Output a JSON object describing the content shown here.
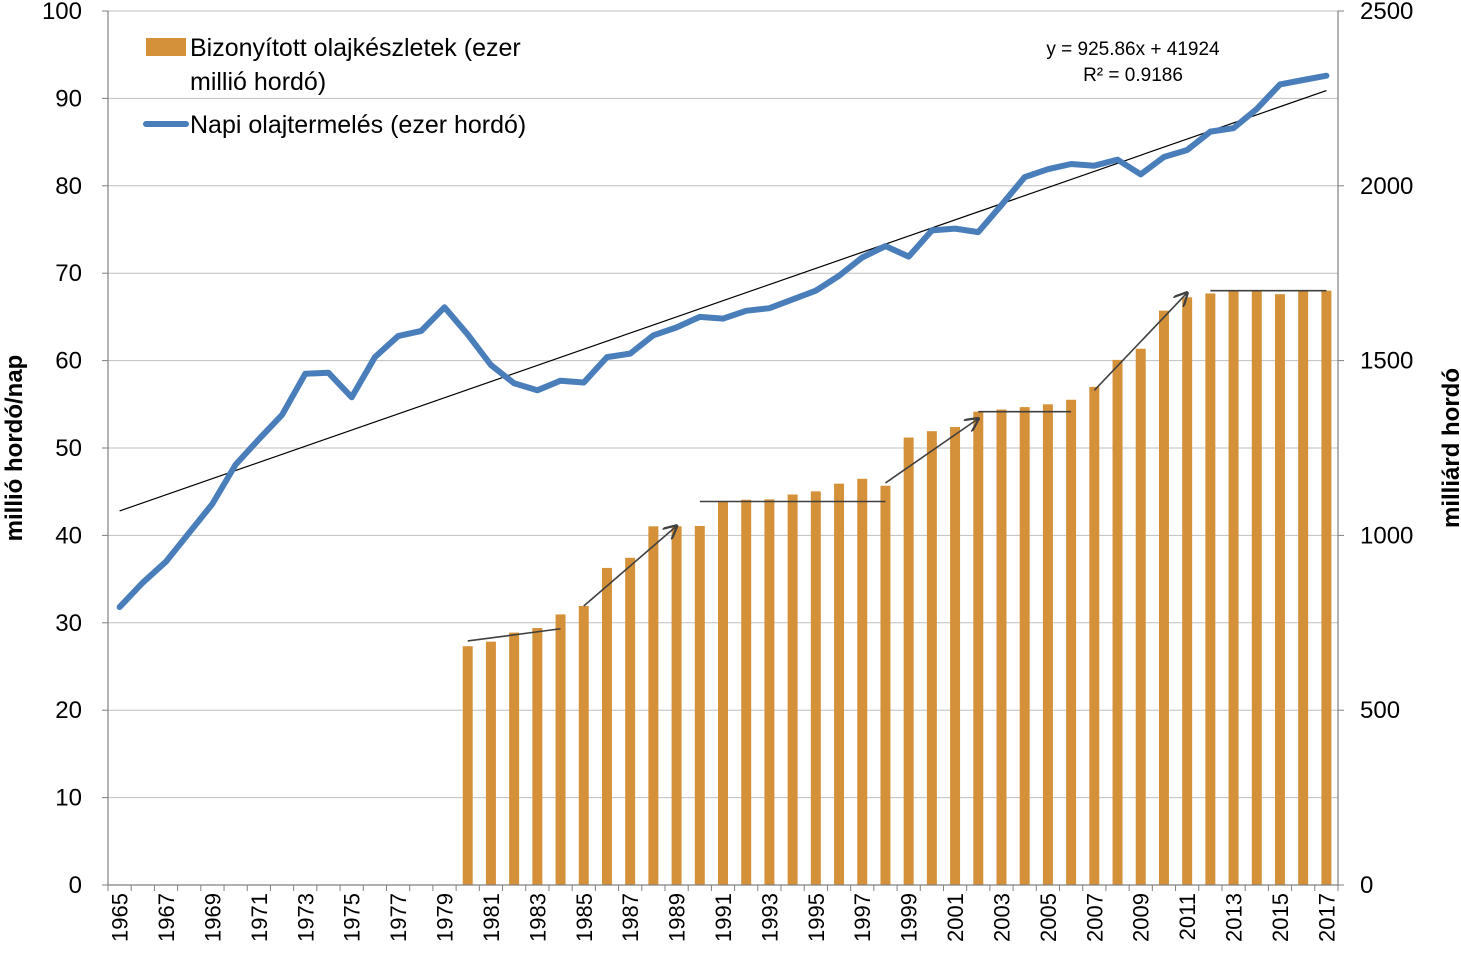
{
  "chart_data": {
    "type": "bar+line",
    "x": [
      1965,
      1966,
      1967,
      1968,
      1969,
      1970,
      1971,
      1972,
      1973,
      1974,
      1975,
      1976,
      1977,
      1978,
      1979,
      1980,
      1981,
      1982,
      1983,
      1984,
      1985,
      1986,
      1987,
      1988,
      1989,
      1990,
      1991,
      1992,
      1993,
      1994,
      1995,
      1996,
      1997,
      1998,
      1999,
      2000,
      2001,
      2002,
      2003,
      2004,
      2005,
      2006,
      2007,
      2008,
      2009,
      2010,
      2011,
      2012,
      2013,
      2014,
      2015,
      2016,
      2017
    ],
    "x_tick_labels": [
      "1965",
      "1967",
      "1969",
      "1971",
      "1973",
      "1975",
      "1977",
      "1979",
      "1981",
      "1983",
      "1985",
      "1987",
      "1989",
      "1991",
      "1993",
      "1995",
      "1997",
      "1999",
      "2001",
      "2003",
      "2005",
      "2007",
      "2009",
      "2011",
      "2013",
      "2015",
      "2017"
    ],
    "series": [
      {
        "name": "Bizonyított olajkészletek (ezer millió hordó)",
        "type": "bar",
        "axis": "right",
        "color": "#D4913A",
        "values": [
          null,
          null,
          null,
          null,
          null,
          null,
          null,
          null,
          null,
          null,
          null,
          null,
          null,
          null,
          null,
          683,
          696,
          722,
          735,
          774,
          798,
          907,
          936,
          1026,
          1026,
          1027,
          1097,
          1102,
          1103,
          1117,
          1126,
          1148,
          1162,
          1142,
          1280,
          1298,
          1310,
          1354,
          1360,
          1367,
          1375,
          1388,
          1425,
          1502,
          1534,
          1643,
          1681,
          1692,
          1700,
          1700,
          1690,
          1700,
          1700
        ]
      },
      {
        "name": "Napi olajtermelés (ezer hordó)",
        "type": "line",
        "axis": "left",
        "color": "#4A7EBB",
        "values": [
          31.8,
          34.6,
          37.0,
          40.3,
          43.6,
          48.1,
          51.0,
          53.8,
          58.5,
          58.6,
          55.8,
          60.4,
          62.8,
          63.4,
          66.1,
          63.0,
          59.5,
          57.4,
          56.6,
          57.7,
          57.5,
          60.4,
          60.8,
          62.9,
          63.8,
          65.0,
          64.8,
          65.7,
          66.0,
          67.0,
          68.0,
          69.7,
          71.8,
          73.1,
          71.9,
          74.9,
          75.1,
          74.7,
          77.8,
          81.0,
          81.9,
          82.5,
          82.3,
          83.0,
          81.3,
          83.3,
          84.1,
          86.2,
          86.6,
          88.8,
          91.6,
          92.1,
          92.6
        ]
      }
    ],
    "trendline": {
      "x": [
        1965,
        2017
      ],
      "y": [
        42.8,
        90.9
      ],
      "equation": "y = 925.86x + 41924",
      "r2": "R² = 0.9186"
    },
    "step_annotations": [
      {
        "type": "flat",
        "from": [
          1980,
          698
        ],
        "to": [
          1984,
          733
        ]
      },
      {
        "type": "arrow",
        "from": [
          1985,
          798
        ],
        "to": [
          1989,
          1027
        ]
      },
      {
        "type": "flat",
        "from": [
          1990,
          1097
        ],
        "to": [
          1998,
          1097
        ]
      },
      {
        "type": "arrow",
        "from": [
          1998,
          1150
        ],
        "to": [
          2002,
          1334
        ]
      },
      {
        "type": "flat",
        "from": [
          2002,
          1354
        ],
        "to": [
          2006,
          1354
        ]
      },
      {
        "type": "arrow",
        "from": [
          2007,
          1415
        ],
        "to": [
          2011,
          1694
        ]
      },
      {
        "type": "flat",
        "from": [
          2012,
          1700
        ],
        "to": [
          2017,
          1700
        ]
      }
    ],
    "y_left": {
      "label": "millió hordó/nap",
      "min": 0,
      "max": 100,
      "ticks": [
        0,
        10,
        20,
        30,
        40,
        50,
        60,
        70,
        80,
        90,
        100
      ]
    },
    "y_right": {
      "label": "milliárd hordó",
      "min": 0,
      "max": 2500,
      "ticks": [
        0,
        500,
        1000,
        1500,
        2000,
        2500
      ]
    },
    "grid": true,
    "legend_position": "top-left",
    "legend": {
      "bar_line1": "Bizonyított olajkészletek (ezer",
      "bar_line2": "millió hordó)",
      "line": "Napi olajtermelés (ezer hordó)"
    },
    "gridline_color": "#BFBFBF"
  }
}
